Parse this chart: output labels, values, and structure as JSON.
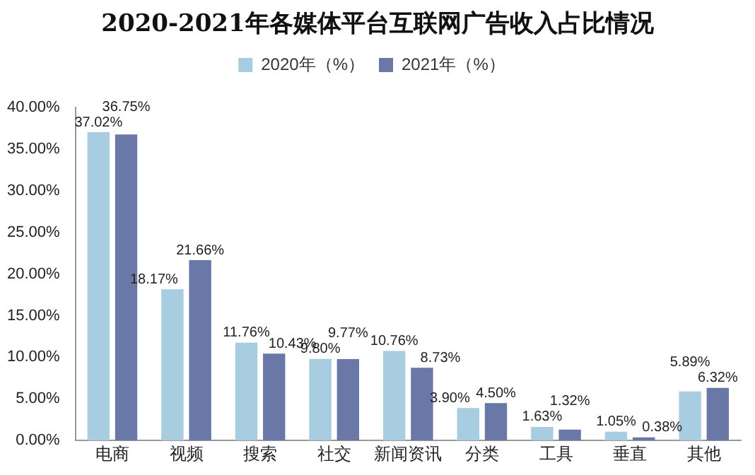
{
  "chart_data": {
    "type": "bar",
    "title": "2020-2021年各媒体平台互联网广告收入占比情况",
    "categories": [
      "电商",
      "视频",
      "搜索",
      "社交",
      "新闻资讯",
      "分类",
      "工具",
      "垂直",
      "其他"
    ],
    "series": [
      {
        "name": "2020年（%）",
        "color": "#a8cde0",
        "values": [
          37.02,
          18.17,
          11.76,
          9.8,
          10.76,
          3.9,
          1.63,
          1.05,
          5.89
        ],
        "value_labels": [
          "37.02%",
          "18.17%",
          "11.76%",
          "9.80%",
          "10.76%",
          "3.90%",
          "1.63%",
          "1.05%",
          "5.89%"
        ]
      },
      {
        "name": "2021年（%）",
        "color": "#6a78a8",
        "values": [
          36.75,
          21.66,
          10.43,
          9.77,
          8.73,
          4.5,
          1.32,
          0.38,
          6.32
        ],
        "value_labels": [
          "36.75%",
          "21.66%",
          "10.43%",
          "9.77%",
          "8.73%",
          "4.50%",
          "1.32%",
          "0.38%",
          "6.32%"
        ]
      }
    ],
    "ylim": [
      0,
      40
    ],
    "yticks": [
      {
        "value": 0,
        "label": "0.00%"
      },
      {
        "value": 5,
        "label": "5.00%"
      },
      {
        "value": 10,
        "label": "10.00%"
      },
      {
        "value": 15,
        "label": "15.00%"
      },
      {
        "value": 20,
        "label": "20.00%"
      },
      {
        "value": 25,
        "label": "25.00%"
      },
      {
        "value": 30,
        "label": "30.00%"
      },
      {
        "value": 35,
        "label": "35.00%"
      },
      {
        "value": 40,
        "label": "40.00%"
      }
    ],
    "grid": false,
    "legend": "top"
  }
}
